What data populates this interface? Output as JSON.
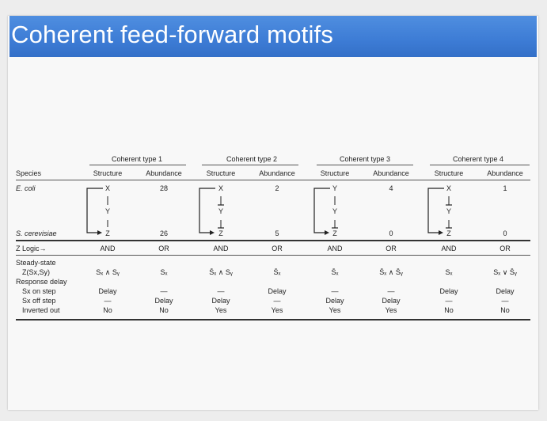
{
  "title": "Coherent feed-forward motifs",
  "type_headers": [
    "Coherent type 1",
    "Coherent type 2",
    "Coherent type 3",
    "Coherent type 4"
  ],
  "sub_headers": {
    "structure": "Structure",
    "abundance": "Abundance"
  },
  "rows_labels": {
    "species": "Species",
    "ecoli": "E. coli",
    "scerevisiae": "S. cerevisiae",
    "zlogic": "Z Logic→",
    "steady_state": "Steady-state",
    "zsxsy": "Z(Sx,Sy)",
    "response_delay": "Response delay",
    "sx_on": "Sx on step",
    "sx_off": "Sx off step",
    "inverted": "Inverted out"
  },
  "types": [
    {
      "nodes": [
        "X",
        "Y",
        "Z"
      ],
      "abundance": [
        "28",
        "26"
      ],
      "logic": [
        "AND",
        "OR"
      ],
      "steady": [
        "Sₓ ∧ Sᵧ",
        "Sₓ"
      ],
      "sx_on": [
        "Delay",
        "—"
      ],
      "sx_off": [
        "—",
        "Delay"
      ],
      "inverted": [
        "No",
        "No"
      ]
    },
    {
      "nodes": [
        "X",
        "Y",
        "Z"
      ],
      "abundance": [
        "2",
        "5"
      ],
      "logic": [
        "AND",
        "OR"
      ],
      "steady": [
        "S̄ₓ ∧ Sᵧ",
        "S̄ₓ"
      ],
      "sx_on": [
        "—",
        "Delay"
      ],
      "sx_off": [
        "Delay",
        "—"
      ],
      "inverted": [
        "Yes",
        "Yes"
      ]
    },
    {
      "nodes": [
        "Y",
        "Y",
        "Z"
      ],
      "abundance": [
        "4",
        "0"
      ],
      "logic": [
        "AND",
        "OR"
      ],
      "steady": [
        "S̄ₓ",
        "S̄ₓ ∧ S̄ᵧ"
      ],
      "sx_on": [
        "—",
        "—"
      ],
      "sx_off": [
        "Delay",
        "Delay"
      ],
      "inverted": [
        "Yes",
        "Yes"
      ]
    },
    {
      "nodes": [
        "X",
        "Y",
        "Z"
      ],
      "abundance": [
        "1",
        "0"
      ],
      "logic": [
        "AND",
        "OR"
      ],
      "steady": [
        "Sₓ",
        "Sₓ ∨ S̄ᵧ"
      ],
      "sx_on": [
        "Delay",
        "Delay"
      ],
      "sx_off": [
        "—",
        "—"
      ],
      "inverted": [
        "No",
        "No"
      ]
    }
  ],
  "edges": [
    {
      "xy": "activate",
      "yz": "activate",
      "xz": "activate"
    },
    {
      "xy": "repress",
      "yz": "repress",
      "xz": "activate"
    },
    {
      "xy": "activate",
      "yz": "repress",
      "xz": "repress"
    },
    {
      "xy": "repress",
      "yz": "repress",
      "xz": "activate"
    }
  ]
}
